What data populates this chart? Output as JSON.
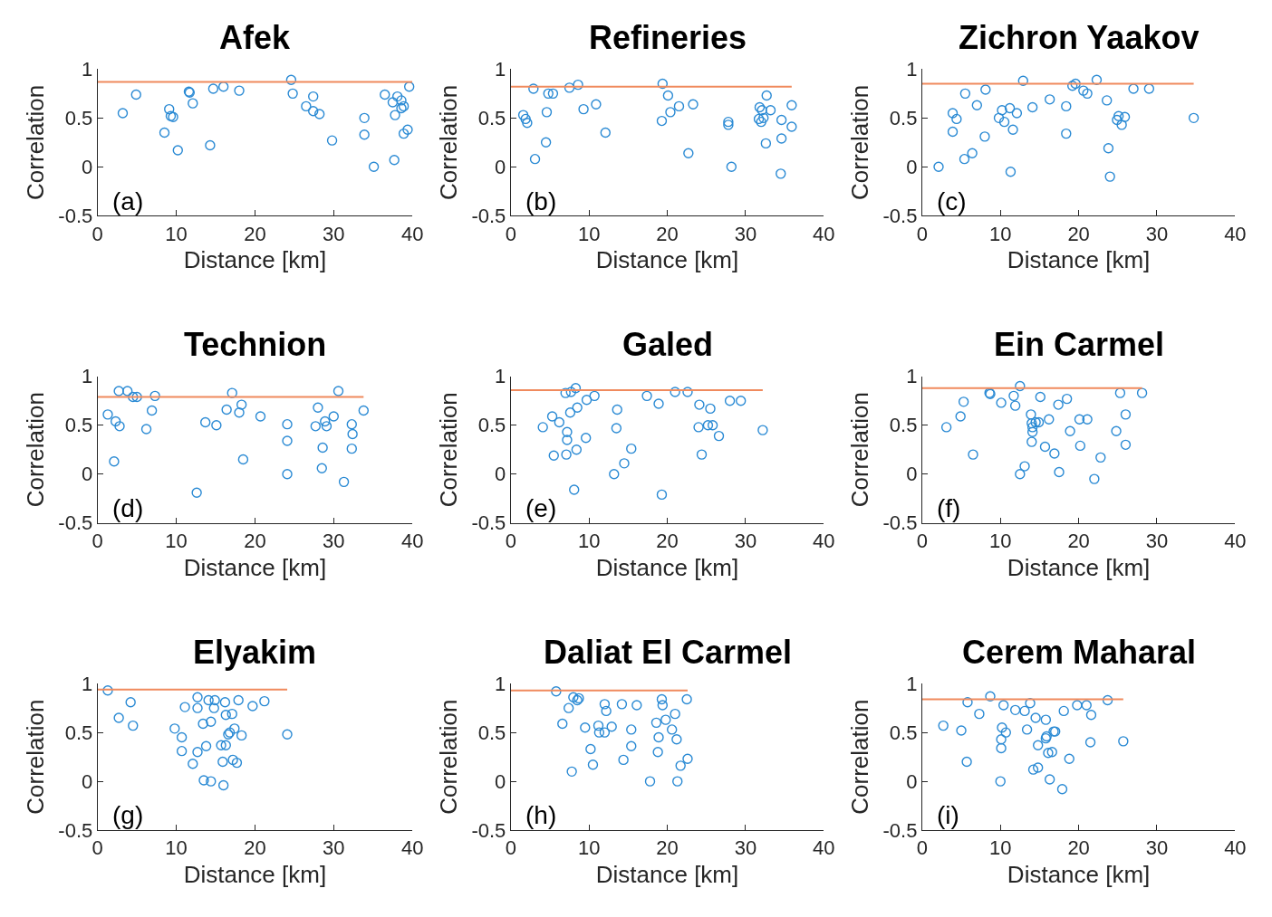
{
  "chart_data": [
    {
      "type": "scatter",
      "title": "Afek",
      "xlabel": "Distance [km]",
      "ylabel": "Correlation",
      "xlim": [
        0,
        40
      ],
      "xticks": [
        0,
        10,
        20,
        30,
        40
      ],
      "ylim": [
        -0.5,
        1
      ],
      "yticks": [
        -0.5,
        0,
        0.5,
        1
      ],
      "marker": "circle",
      "annotations": [
        "(a)"
      ],
      "series": [
        {
          "color": "#2a8ad4",
          "x": [
            3.2,
            4.9,
            8.5,
            9.1,
            9.3,
            9.6,
            10.2,
            11.6,
            11.7,
            12.1,
            14.3,
            14.7,
            16.0,
            18.0,
            24.6,
            24.8,
            26.5,
            27.4,
            27.4,
            28.2,
            29.8,
            33.9,
            33.9,
            35.1,
            36.5,
            37.5,
            37.7,
            37.8,
            38.1,
            38.6,
            38.6,
            38.9,
            38.9,
            39.4,
            39.6
          ],
          "values": [
            0.55,
            0.74,
            0.35,
            0.59,
            0.52,
            0.51,
            0.17,
            0.77,
            0.76,
            0.65,
            0.22,
            0.8,
            0.82,
            0.78,
            0.89,
            0.75,
            0.62,
            0.72,
            0.57,
            0.54,
            0.27,
            0.5,
            0.33,
            0.0,
            0.74,
            0.66,
            0.07,
            0.53,
            0.72,
            0.68,
            0.6,
            0.62,
            0.34,
            0.38,
            0.82
          ]
        },
        {
          "type": "line",
          "marker": "none",
          "color": "#f08a5d",
          "x": [
            0,
            40
          ],
          "values": [
            0.87,
            0.87
          ]
        }
      ]
    },
    {
      "type": "scatter",
      "title": "Refineries",
      "xlabel": "Distance [km]",
      "ylabel": "Correlation",
      "xlim": [
        0,
        40
      ],
      "xticks": [
        0,
        10,
        20,
        30,
        40
      ],
      "ylim": [
        -0.5,
        1
      ],
      "yticks": [
        -0.5,
        0,
        0.5,
        1
      ],
      "marker": "circle",
      "annotations": [
        "(b)"
      ],
      "series": [
        {
          "color": "#2a8ad4",
          "x": [
            1.6,
            1.9,
            2.1,
            2.9,
            3.1,
            4.5,
            4.6,
            4.8,
            5.4,
            7.5,
            8.6,
            9.3,
            10.9,
            12.1,
            19.4,
            19.3,
            20.1,
            20.4,
            21.5,
            22.7,
            23.3,
            27.8,
            27.8,
            28.2,
            31.8,
            32.1,
            31.7,
            32.0,
            32.3,
            32.7,
            33.2,
            32.6,
            34.6,
            34.6,
            34.5,
            35.9,
            35.9
          ],
          "values": [
            0.53,
            0.49,
            0.45,
            0.8,
            0.08,
            0.25,
            0.56,
            0.75,
            0.75,
            0.81,
            0.84,
            0.59,
            0.64,
            0.35,
            0.85,
            0.47,
            0.73,
            0.56,
            0.62,
            0.14,
            0.64,
            0.46,
            0.43,
            0.0,
            0.61,
            0.58,
            0.49,
            0.46,
            0.5,
            0.73,
            0.58,
            0.24,
            0.48,
            0.29,
            -0.07,
            0.63,
            0.41
          ]
        },
        {
          "type": "line",
          "marker": "none",
          "color": "#f08a5d",
          "x": [
            0,
            35.9
          ],
          "values": [
            0.82,
            0.82
          ]
        }
      ]
    },
    {
      "type": "scatter",
      "title": "Zichron Yaakov",
      "xlabel": "Distance [km]",
      "ylabel": "Correlation",
      "xlim": [
        0,
        40
      ],
      "xticks": [
        0,
        10,
        20,
        30,
        40
      ],
      "ylim": [
        -0.5,
        1
      ],
      "yticks": [
        -0.5,
        0,
        0.5,
        1
      ],
      "marker": "circle",
      "annotations": [
        "(c)"
      ],
      "series": [
        {
          "color": "#2a8ad4",
          "x": [
            2.1,
            3.9,
            3.9,
            4.4,
            5.4,
            5.5,
            6.4,
            7.0,
            8.1,
            8.0,
            9.8,
            10.2,
            10.5,
            11.2,
            11.3,
            11.6,
            12.1,
            12.9,
            14.1,
            16.3,
            18.4,
            18.4,
            19.2,
            19.6,
            20.6,
            21.1,
            22.3,
            23.6,
            23.8,
            24.0,
            24.9,
            25.1,
            25.5,
            25.9,
            27.0,
            29.0,
            34.7
          ],
          "values": [
            0.0,
            0.55,
            0.36,
            0.49,
            0.08,
            0.75,
            0.14,
            0.63,
            0.79,
            0.31,
            0.5,
            0.58,
            0.46,
            0.6,
            -0.05,
            0.38,
            0.55,
            0.88,
            0.61,
            0.69,
            0.62,
            0.34,
            0.83,
            0.85,
            0.78,
            0.75,
            0.89,
            0.68,
            0.19,
            -0.1,
            0.48,
            0.52,
            0.43,
            0.51,
            0.8,
            0.8,
            0.5
          ]
        },
        {
          "type": "line",
          "marker": "none",
          "color": "#f08a5d",
          "x": [
            0,
            34.7
          ],
          "values": [
            0.85,
            0.85
          ]
        }
      ]
    },
    {
      "type": "scatter",
      "title": "Technion",
      "xlabel": "Distance [km]",
      "ylabel": "Correlation",
      "xlim": [
        0,
        40
      ],
      "xticks": [
        0,
        10,
        20,
        30,
        40
      ],
      "ylim": [
        -0.5,
        1
      ],
      "yticks": [
        -0.5,
        0,
        0.5,
        1
      ],
      "marker": "circle",
      "annotations": [
        "(d)"
      ],
      "series": [
        {
          "color": "#2a8ad4",
          "x": [
            1.3,
            2.1,
            2.3,
            2.7,
            2.8,
            3.8,
            4.5,
            5.0,
            6.2,
            6.9,
            7.3,
            12.6,
            13.7,
            15.1,
            16.4,
            17.1,
            18.0,
            18.3,
            18.5,
            20.7,
            24.1,
            24.1,
            24.1,
            27.7,
            28.0,
            28.6,
            28.5,
            28.9,
            29.1,
            30.0,
            30.6,
            31.3,
            32.3,
            32.4,
            32.3,
            33.8
          ],
          "values": [
            0.61,
            0.13,
            0.54,
            0.85,
            0.49,
            0.85,
            0.79,
            0.79,
            0.46,
            0.65,
            0.8,
            -0.19,
            0.53,
            0.5,
            0.66,
            0.83,
            0.63,
            0.71,
            0.15,
            0.59,
            0.51,
            0.34,
            0.0,
            0.49,
            0.68,
            0.27,
            0.06,
            0.54,
            0.49,
            0.59,
            0.85,
            -0.08,
            0.51,
            0.41,
            0.26,
            0.65
          ]
        },
        {
          "type": "line",
          "marker": "none",
          "color": "#f08a5d",
          "x": [
            0,
            33.8
          ],
          "values": [
            0.79,
            0.79
          ]
        }
      ]
    },
    {
      "type": "scatter",
      "title": "Galed",
      "xlabel": "Distance [km]",
      "ylabel": "Correlation",
      "xlim": [
        0,
        40
      ],
      "xticks": [
        0,
        10,
        20,
        30,
        40
      ],
      "ylim": [
        -0.5,
        1
      ],
      "yticks": [
        -0.5,
        0,
        0.5,
        1
      ],
      "marker": "circle",
      "annotations": [
        "(e)"
      ],
      "series": [
        {
          "color": "#2a8ad4",
          "x": [
            4.1,
            5.3,
            5.5,
            6.2,
            7.0,
            7.1,
            7.2,
            7.2,
            7.7,
            7.6,
            8.3,
            8.1,
            8.4,
            8.5,
            9.6,
            9.7,
            10.7,
            13.2,
            13.5,
            13.6,
            14.5,
            15.4,
            17.4,
            18.9,
            19.3,
            21.0,
            22.6,
            24.1,
            24.0,
            24.4,
            25.2,
            25.5,
            25.8,
            26.6,
            28.0,
            29.4,
            32.2
          ],
          "values": [
            0.48,
            0.59,
            0.19,
            0.53,
            0.83,
            0.2,
            0.35,
            0.43,
            0.84,
            0.63,
            0.88,
            -0.16,
            0.25,
            0.68,
            0.37,
            0.76,
            0.8,
            0.0,
            0.47,
            0.66,
            0.11,
            0.26,
            0.8,
            0.72,
            -0.21,
            0.84,
            0.84,
            0.71,
            0.48,
            0.2,
            0.5,
            0.67,
            0.5,
            0.39,
            0.75,
            0.75,
            0.45
          ]
        },
        {
          "type": "line",
          "marker": "none",
          "color": "#f08a5d",
          "x": [
            0,
            32.2
          ],
          "values": [
            0.86,
            0.86
          ]
        }
      ]
    },
    {
      "type": "scatter",
      "title": "Ein Carmel",
      "xlabel": "Distance [km]",
      "ylabel": "Correlation",
      "xlim": [
        0,
        40
      ],
      "xticks": [
        0,
        10,
        20,
        30,
        40
      ],
      "ylim": [
        -0.5,
        1
      ],
      "yticks": [
        -0.5,
        0,
        0.5,
        1
      ],
      "marker": "circle",
      "annotations": [
        "(f)"
      ],
      "series": [
        {
          "color": "#2a8ad4",
          "x": [
            3.1,
            4.9,
            5.3,
            6.5,
            8.6,
            8.7,
            10.1,
            11.7,
            11.9,
            12.5,
            12.5,
            13.1,
            13.9,
            14.0,
            14.1,
            14.1,
            14.0,
            14.5,
            14.9,
            15.1,
            15.7,
            16.2,
            16.9,
            17.4,
            17.5,
            18.5,
            18.9,
            20.1,
            20.2,
            21.1,
            22.0,
            22.8,
            24.8,
            25.3,
            26.0,
            26.0,
            28.1
          ],
          "values": [
            0.48,
            0.59,
            0.74,
            0.2,
            0.83,
            0.82,
            0.73,
            0.8,
            0.7,
            0.9,
            0.0,
            0.08,
            0.61,
            0.52,
            0.48,
            0.43,
            0.33,
            0.53,
            0.53,
            0.79,
            0.28,
            0.56,
            0.21,
            0.71,
            0.02,
            0.77,
            0.44,
            0.56,
            0.29,
            0.56,
            -0.05,
            0.17,
            0.44,
            0.83,
            0.61,
            0.3,
            0.83
          ]
        },
        {
          "type": "line",
          "marker": "none",
          "color": "#f08a5d",
          "x": [
            0,
            28.1
          ],
          "values": [
            0.88,
            0.88
          ]
        }
      ]
    },
    {
      "type": "scatter",
      "title": "Elyakim",
      "xlabel": "Distance [km]",
      "ylabel": "Correlation",
      "xlim": [
        0,
        40
      ],
      "xticks": [
        0,
        10,
        20,
        30,
        40
      ],
      "ylim": [
        -0.5,
        1
      ],
      "yticks": [
        -0.5,
        0,
        0.5,
        1
      ],
      "marker": "circle",
      "annotations": [
        "(g)"
      ],
      "series": [
        {
          "color": "#2a8ad4",
          "x": [
            1.3,
            2.7,
            4.2,
            4.5,
            9.8,
            10.7,
            10.7,
            11.1,
            12.1,
            12.7,
            12.7,
            12.7,
            13.4,
            13.5,
            13.8,
            14.1,
            14.4,
            14.4,
            14.8,
            14.9,
            15.7,
            15.9,
            16.0,
            16.2,
            16.3,
            16.3,
            16.6,
            16.8,
            17.1,
            17.2,
            17.4,
            17.7,
            17.9,
            18.3,
            19.7,
            21.2,
            24.1
          ],
          "values": [
            0.93,
            0.65,
            0.81,
            0.57,
            0.54,
            0.45,
            0.31,
            0.76,
            0.18,
            0.86,
            0.75,
            0.3,
            0.59,
            0.01,
            0.36,
            0.83,
            0.61,
            0.0,
            0.75,
            0.83,
            0.37,
            0.2,
            -0.04,
            0.81,
            0.68,
            0.37,
            0.48,
            0.5,
            0.69,
            0.22,
            0.54,
            0.19,
            0.83,
            0.47,
            0.77,
            0.82,
            0.48
          ]
        },
        {
          "type": "line",
          "marker": "none",
          "color": "#f08a5d",
          "x": [
            0,
            24.1
          ],
          "values": [
            0.94,
            0.94
          ]
        }
      ]
    },
    {
      "type": "scatter",
      "title": "Daliat El Carmel",
      "xlabel": "Distance [km]",
      "ylabel": "Correlation",
      "xlim": [
        0,
        40
      ],
      "xticks": [
        0,
        10,
        20,
        30,
        40
      ],
      "ylim": [
        -0.5,
        1
      ],
      "yticks": [
        -0.5,
        0,
        0.5,
        1
      ],
      "marker": "circle",
      "annotations": [
        "(h)"
      ],
      "series": [
        {
          "color": "#2a8ad4",
          "x": [
            5.8,
            6.6,
            7.4,
            7.8,
            8.0,
            8.5,
            8.7,
            9.5,
            10.2,
            10.5,
            11.2,
            11.3,
            12.0,
            12.0,
            12.2,
            12.9,
            14.2,
            14.4,
            15.4,
            15.4,
            16.1,
            17.8,
            18.6,
            18.8,
            18.9,
            19.3,
            19.4,
            19.8,
            20.6,
            21.0,
            21.2,
            21.3,
            21.7,
            22.5,
            22.6
          ],
          "values": [
            0.92,
            0.59,
            0.75,
            0.1,
            0.86,
            0.83,
            0.85,
            0.55,
            0.33,
            0.17,
            0.57,
            0.5,
            0.79,
            0.5,
            0.72,
            0.56,
            0.79,
            0.22,
            0.53,
            0.36,
            0.78,
            0.0,
            0.6,
            0.3,
            0.45,
            0.84,
            0.78,
            0.63,
            0.53,
            0.69,
            0.43,
            0.0,
            0.16,
            0.84,
            0.23
          ]
        },
        {
          "type": "line",
          "marker": "none",
          "color": "#f08a5d",
          "x": [
            0,
            22.6
          ],
          "values": [
            0.93,
            0.93
          ]
        }
      ]
    },
    {
      "type": "scatter",
      "title": "Cerem Maharal",
      "xlabel": "Distance [km]",
      "ylabel": "Correlation",
      "xlim": [
        0,
        40
      ],
      "xticks": [
        0,
        10,
        20,
        30,
        40
      ],
      "ylim": [
        -0.5,
        1
      ],
      "yticks": [
        -0.5,
        0,
        0.5,
        1
      ],
      "marker": "circle",
      "annotations": [
        "(i)"
      ],
      "series": [
        {
          "color": "#2a8ad4",
          "x": [
            2.7,
            5.0,
            5.7,
            5.8,
            7.3,
            8.7,
            10.1,
            10.1,
            10.2,
            10.0,
            10.4,
            10.7,
            11.9,
            13.1,
            13.4,
            13.8,
            14.2,
            14.5,
            14.8,
            14.8,
            15.8,
            15.8,
            15.9,
            16.1,
            16.3,
            16.6,
            16.8,
            17.0,
            17.9,
            18.1,
            18.8,
            19.8,
            21.0,
            21.6,
            21.5,
            23.7,
            25.7
          ],
          "values": [
            0.57,
            0.52,
            0.2,
            0.81,
            0.69,
            0.87,
            0.34,
            0.43,
            0.55,
            0.0,
            0.78,
            0.5,
            0.73,
            0.72,
            0.53,
            0.8,
            0.12,
            0.65,
            0.37,
            0.14,
            0.63,
            0.44,
            0.46,
            0.29,
            0.02,
            0.3,
            0.51,
            0.51,
            -0.08,
            0.72,
            0.23,
            0.78,
            0.78,
            0.68,
            0.4,
            0.83,
            0.41
          ]
        },
        {
          "type": "line",
          "marker": "none",
          "color": "#f08a5d",
          "x": [
            0,
            25.7
          ],
          "values": [
            0.84,
            0.84
          ]
        }
      ]
    }
  ]
}
